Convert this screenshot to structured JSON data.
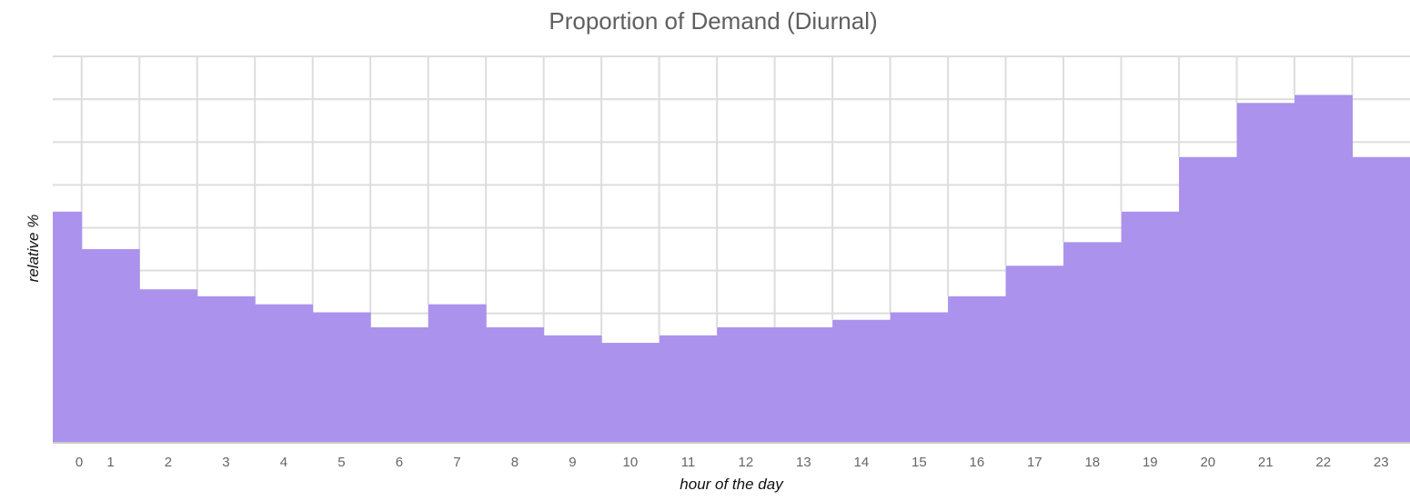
{
  "chart_data": {
    "type": "area",
    "title": "Proportion of Demand (Diurnal)",
    "xlabel": "hour of the day",
    "ylabel": "relative %",
    "categories": [
      "0",
      "1",
      "2",
      "3",
      "4",
      "5",
      "6",
      "7",
      "8",
      "9",
      "10",
      "11",
      "12",
      "13",
      "14",
      "15",
      "16",
      "17",
      "18",
      "19",
      "20",
      "21",
      "22",
      "23"
    ],
    "series": [
      {
        "values": [
          5.6,
          4.9,
          4.15,
          4.02,
          3.87,
          3.72,
          3.44,
          3.87,
          3.44,
          3.29,
          3.15,
          3.29,
          3.44,
          3.44,
          3.58,
          3.72,
          4.02,
          4.59,
          5.03,
          5.6,
          6.62,
          7.63,
          7.78,
          6.62
        ],
        "color": "#ab92ec"
      }
    ],
    "ylim": [
      1.3,
      8.5
    ],
    "y_gridlines": [
      1.3,
      2.1,
      2.9,
      3.7,
      4.5,
      5.3,
      6.1,
      6.9,
      7.7,
      8.5
    ],
    "y_tick_labels_shown": false,
    "grid": true,
    "step": true,
    "colors": {
      "fill": "#ab92ec",
      "grid": "#dddddd",
      "baseline": "#cccccc"
    }
  }
}
